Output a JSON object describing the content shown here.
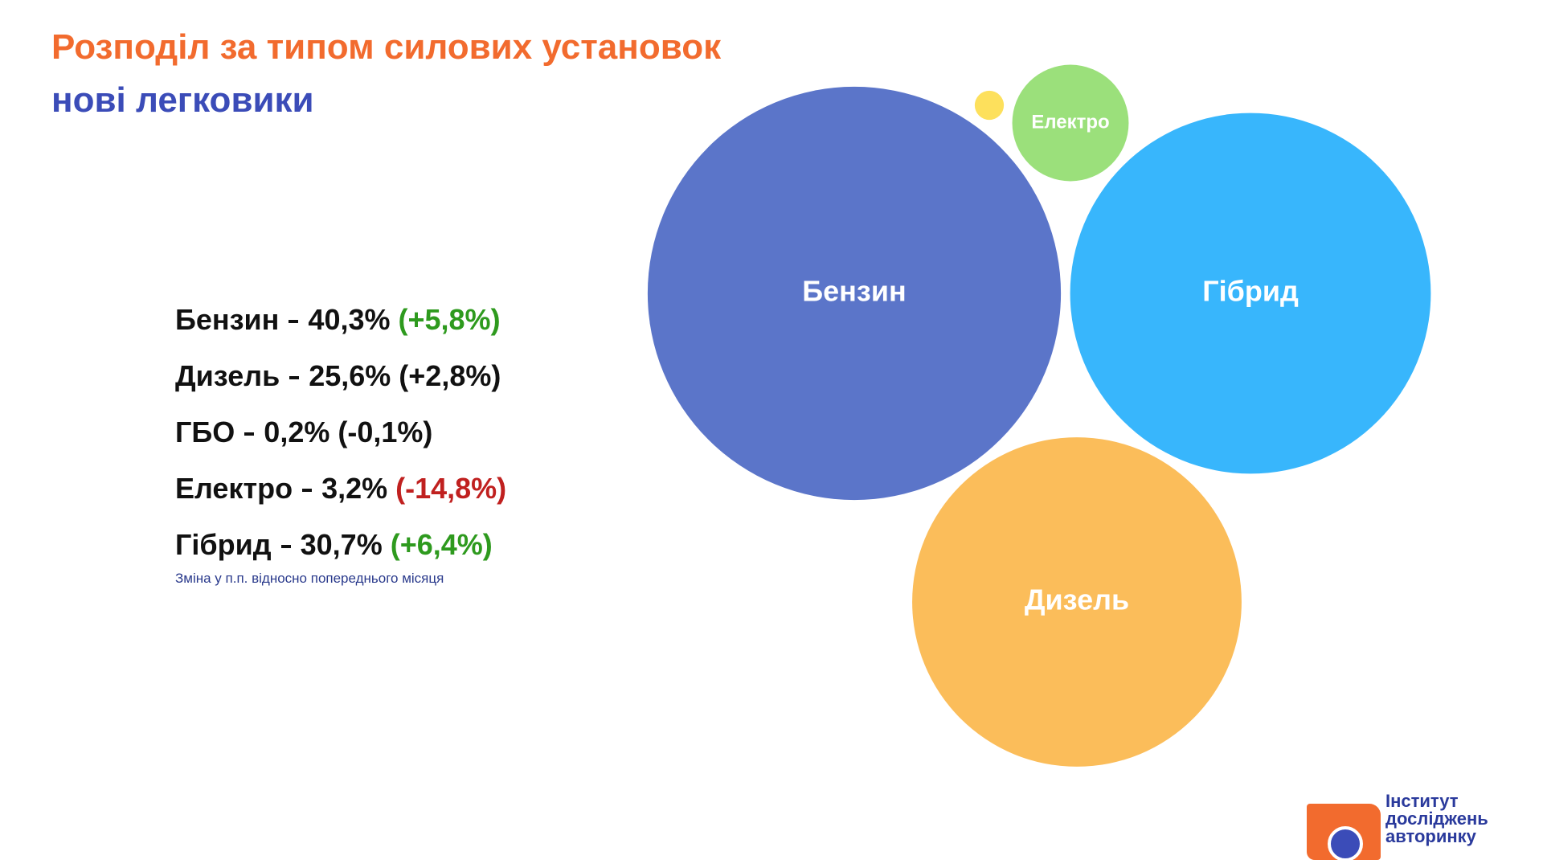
{
  "chart_data": {
    "type": "bubble",
    "title": "Розподіл за типом силових установок",
    "subtitle": "нові легковики",
    "categories": [
      "Бензин",
      "Дизель",
      "ГБО",
      "Електро",
      "Гібрид"
    ],
    "values": [
      40.3,
      25.6,
      0.2,
      3.2,
      30.7
    ],
    "value_labels": [
      "40,3%",
      "25,6%",
      "0,2%",
      "3,2%",
      "30,7%"
    ],
    "bubble_labels": [
      "Бензин",
      "Дизель",
      null,
      "Електро",
      "Гібрид"
    ],
    "colors": [
      "#5b75c9",
      "#fbbd5a",
      "#fde05c",
      "#9be07b",
      "#38b6fc"
    ],
    "changes": [
      5.8,
      2.8,
      -0.1,
      -14.8,
      6.4
    ],
    "change_labels": [
      "(+5,8%)",
      "(+2,8%)",
      "(-0,1%)",
      "(-14,8%)",
      "(+6,4%)"
    ],
    "change_colors": [
      "#2e9a1e",
      "#111111",
      "#111111",
      "#c0201f",
      "#2e9a1e"
    ],
    "note": "Зміна у п.п. відносно попереднього місяця"
  },
  "logo": {
    "lines": [
      "Інститут",
      "досліджень",
      "авторинку"
    ]
  }
}
